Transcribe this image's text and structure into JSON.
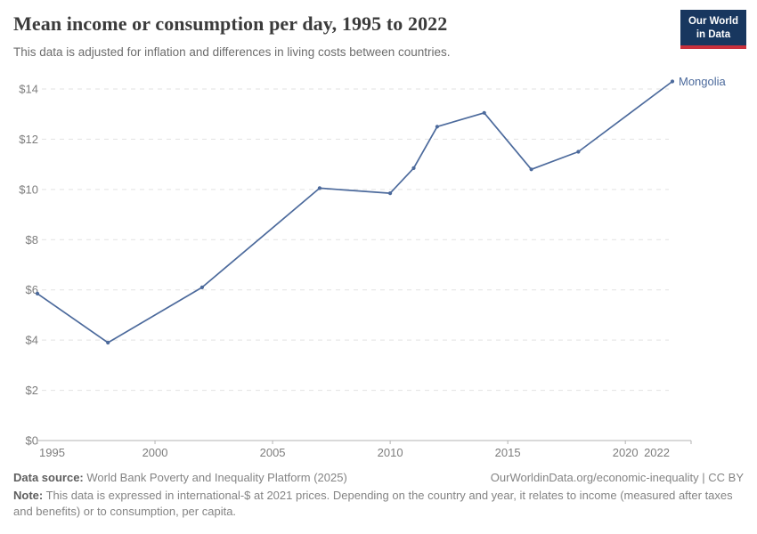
{
  "header": {
    "title": "Mean income or consumption per day, 1995 to 2022",
    "subtitle": "This data is adjusted for inflation and differences in living costs between countries.",
    "logo": {
      "line1": "Our World",
      "line2": "in Data",
      "bg_color": "#18375F",
      "stripe_color": "#C9303C"
    }
  },
  "chart_data": {
    "type": "line",
    "title": "Mean income or consumption per day, 1995 to 2022",
    "series": [
      {
        "name": "Mongolia",
        "color": "#4C6A9C",
        "x": [
          1995,
          1998,
          2002,
          2007,
          2010,
          2011,
          2012,
          2014,
          2016,
          2018,
          2022
        ],
        "values": [
          5.85,
          3.9,
          6.1,
          10.05,
          9.85,
          10.85,
          12.5,
          13.05,
          10.8,
          11.5,
          14.3
        ]
      }
    ],
    "end_label": "Mongolia",
    "xlim": [
      1995,
      2022
    ],
    "ylim": [
      0,
      14
    ],
    "x_ticks": [
      1995,
      2000,
      2005,
      2010,
      2015,
      2020,
      2022
    ],
    "y_ticks": [
      0,
      2,
      4,
      6,
      8,
      10,
      12,
      14
    ],
    "y_tick_prefix": "$",
    "grid": "horizontal-dashed",
    "legend_position": "line-end-label",
    "grid_color": "#e2e2e2",
    "axis_color": "#b3b3b3",
    "tick_label_color": "#7d7d7d"
  },
  "footer": {
    "datasource_label": "Data source:",
    "datasource_text": " World Bank Poverty and Inequality Platform (2025)",
    "attribution": "OurWorldinData.org/economic-inequality | CC BY",
    "note_label": "Note:",
    "note_text": " This data is expressed in international-$ at 2021 prices. Depending on the country and year, it relates to income (measured after taxes and benefits) or to consumption, per capita."
  }
}
